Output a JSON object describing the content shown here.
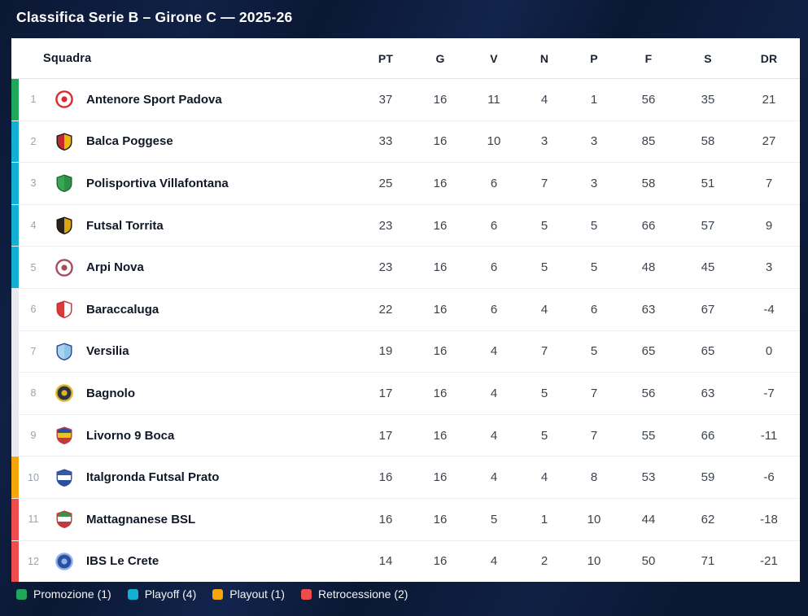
{
  "title": "Classifica Serie B – Girone C — 2025-26",
  "zone_colors": {
    "promozione": "#1fa75a",
    "playoff": "#14b0d4",
    "none": "#e8eaee",
    "playout": "#f5a60a",
    "retrocessione": "#ef4d4d"
  },
  "table": {
    "columns": [
      "Squadra",
      "PT",
      "G",
      "V",
      "N",
      "P",
      "F",
      "S",
      "DR"
    ],
    "rows": [
      {
        "pos": "1",
        "team": "Antenore Sport Padova",
        "zone": "promozione",
        "badge": {
          "style": "ring",
          "colors": [
            "#ffffff",
            "#d92b2b"
          ]
        },
        "stats": [
          "37",
          "16",
          "11",
          "4",
          "1",
          "56",
          "35",
          "21"
        ]
      },
      {
        "pos": "2",
        "team": "Balca Poggese",
        "zone": "playoff",
        "badge": {
          "style": "halves",
          "colors": [
            "#c1272d",
            "#e8b70a",
            "#1a1a1a"
          ]
        },
        "stats": [
          "33",
          "16",
          "10",
          "3",
          "3",
          "85",
          "58",
          "27"
        ]
      },
      {
        "pos": "3",
        "team": "Polisportiva Villafontana",
        "zone": "playoff",
        "badge": {
          "style": "halves",
          "colors": [
            "#3aa655",
            "#2e8f47",
            "#1d6b30"
          ]
        },
        "stats": [
          "25",
          "16",
          "6",
          "7",
          "3",
          "58",
          "51",
          "7"
        ]
      },
      {
        "pos": "4",
        "team": "Futsal Torrita",
        "zone": "playoff",
        "badge": {
          "style": "halves",
          "colors": [
            "#2a2118",
            "#d9a514",
            "#1a140d"
          ]
        },
        "stats": [
          "23",
          "16",
          "6",
          "5",
          "5",
          "66",
          "57",
          "9"
        ]
      },
      {
        "pos": "5",
        "team": "Arpi Nova",
        "zone": "playoff",
        "badge": {
          "style": "ring",
          "colors": [
            "#ffffff",
            "#a64d5c"
          ]
        },
        "stats": [
          "23",
          "16",
          "6",
          "5",
          "5",
          "48",
          "45",
          "3"
        ]
      },
      {
        "pos": "6",
        "team": "Baraccaluga",
        "zone": "none",
        "badge": {
          "style": "halves",
          "colors": [
            "#d93a3a",
            "#ffffff",
            "#c53030"
          ]
        },
        "stats": [
          "22",
          "16",
          "6",
          "4",
          "6",
          "63",
          "67",
          "-4"
        ]
      },
      {
        "pos": "7",
        "team": "Versilia",
        "zone": "none",
        "badge": {
          "style": "halves",
          "colors": [
            "#a8d4f0",
            "#8fc4ea",
            "#27468c"
          ]
        },
        "stats": [
          "19",
          "16",
          "4",
          "7",
          "5",
          "65",
          "65",
          "0"
        ]
      },
      {
        "pos": "8",
        "team": "Bagnolo",
        "zone": "none",
        "badge": {
          "style": "ring",
          "colors": [
            "#2b3442",
            "#e0b528"
          ]
        },
        "stats": [
          "17",
          "16",
          "4",
          "5",
          "7",
          "56",
          "63",
          "-7"
        ]
      },
      {
        "pos": "9",
        "team": "Livorno 9 Boca",
        "zone": "none",
        "badge": {
          "style": "bands",
          "colors": [
            "#2b4fa0",
            "#e8c51f",
            "#c23b3b"
          ]
        },
        "stats": [
          "17",
          "16",
          "4",
          "5",
          "7",
          "55",
          "66",
          "-11"
        ]
      },
      {
        "pos": "10",
        "team": "Italgronda Futsal Prato",
        "zone": "playout",
        "badge": {
          "style": "bands",
          "colors": [
            "#3b55a8",
            "#ffffff",
            "#2b4fa0"
          ]
        },
        "stats": [
          "16",
          "16",
          "4",
          "4",
          "8",
          "53",
          "59",
          "-6"
        ]
      },
      {
        "pos": "11",
        "team": "Mattagnanese BSL",
        "zone": "retrocessione",
        "badge": {
          "style": "bands",
          "colors": [
            "#3e8f4a",
            "#ffffff",
            "#c23b3b"
          ]
        },
        "stats": [
          "16",
          "16",
          "5",
          "1",
          "10",
          "44",
          "62",
          "-18"
        ]
      },
      {
        "pos": "12",
        "team": "IBS Le Crete",
        "zone": "retrocessione",
        "badge": {
          "style": "ring",
          "colors": [
            "#2b4fa0",
            "#8fb3e8"
          ]
        },
        "stats": [
          "14",
          "16",
          "4",
          "2",
          "10",
          "50",
          "71",
          "-21"
        ]
      }
    ]
  },
  "legend": [
    {
      "label": "Promozione (1)",
      "color": "#1fa75a"
    },
    {
      "label": "Playoff (4)",
      "color": "#14b0d4"
    },
    {
      "label": "Playout (1)",
      "color": "#f5a60a"
    },
    {
      "label": "Retrocessione (2)",
      "color": "#ef4d4d"
    }
  ]
}
